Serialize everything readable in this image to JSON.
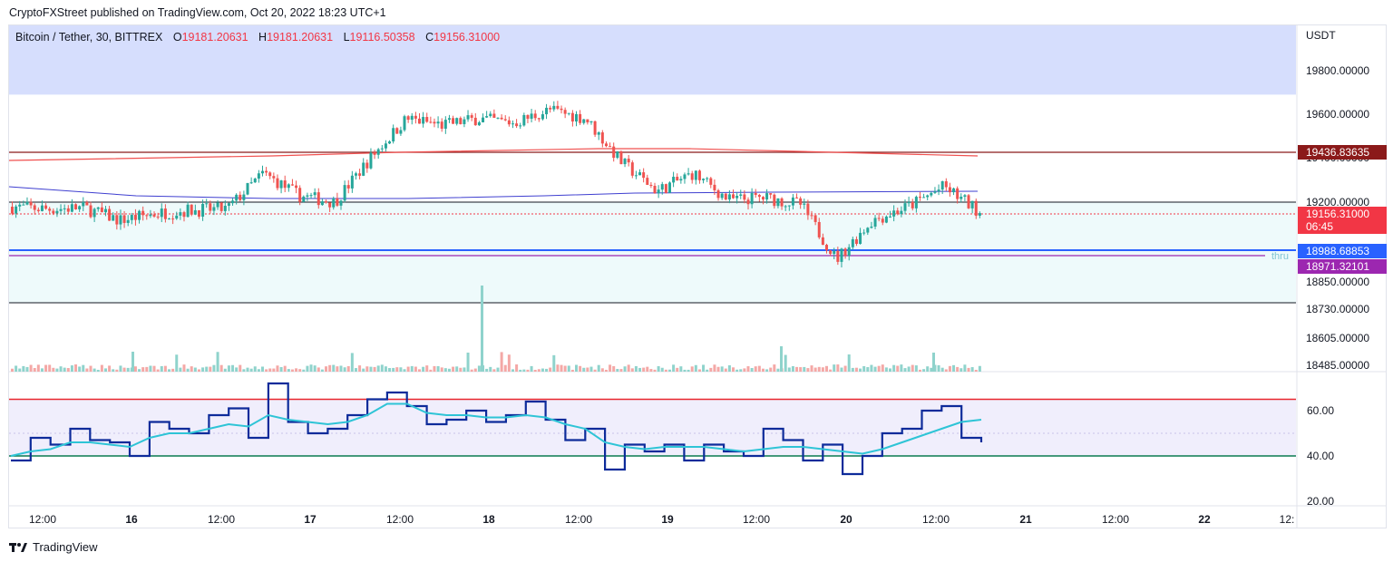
{
  "header": {
    "published": "CryptoFXStreet published on TradingView.com, Oct 20, 2022 18:23 UTC+1"
  },
  "legend": {
    "symbol": "Bitcoin / Tether, 30, BITTREX",
    "o_label": "O",
    "o_value": "19181.20631",
    "h_label": "H",
    "h_value": "19181.20631",
    "l_label": "L",
    "l_value": "19116.50358",
    "c_label": "C",
    "c_value": "19156.31000"
  },
  "footer": {
    "brand": "TradingView"
  },
  "colors": {
    "up": "#26a69a",
    "down": "#ef5350",
    "rsi": "#0d2b9a",
    "rsi_ma": "#2ec4d6",
    "zone_top": "#d6defd",
    "zone_mid": "#eefafb",
    "band": "#f0eefc"
  },
  "chart_data": [
    {
      "type": "candlestick",
      "title": "",
      "ylabel": "USDT",
      "ylim": [
        18430,
        19900
      ],
      "y_ticks": [
        "19800.00000",
        "19600.00000",
        "19400.00000",
        "19200.00000",
        "18850.00000",
        "18730.00000",
        "18605.00000",
        "18485.00000"
      ],
      "x_ticks": [
        "12:00",
        "16",
        "12:00",
        "17",
        "12:00",
        "18",
        "12:00",
        "19",
        "12:00",
        "20",
        "12:00",
        "21",
        "12:00",
        "22",
        "12:"
      ],
      "x_range": [
        "Oct 15 06:00",
        "Oct 23 00:00"
      ],
      "series_close": [
        {
          "t": "15 06:00",
          "v": 19180
        },
        {
          "t": "15 12:00",
          "v": 19170
        },
        {
          "t": "15 18:00",
          "v": 19175
        },
        {
          "t": "16 00:00",
          "v": 19120
        },
        {
          "t": "16 06:00",
          "v": 19150
        },
        {
          "t": "16 12:00",
          "v": 19165
        },
        {
          "t": "16 18:00",
          "v": 19170
        },
        {
          "t": "16 20:00",
          "v": 19330
        },
        {
          "t": "17 00:00",
          "v": 19230
        },
        {
          "t": "17 06:00",
          "v": 19200
        },
        {
          "t": "17 10:00",
          "v": 19400
        },
        {
          "t": "17 14:00",
          "v": 19580
        },
        {
          "t": "17 20:00",
          "v": 19550
        },
        {
          "t": "18 00:00",
          "v": 19580
        },
        {
          "t": "18 06:00",
          "v": 19560
        },
        {
          "t": "18 10:00",
          "v": 19620
        },
        {
          "t": "18 14:00",
          "v": 19580
        },
        {
          "t": "18 18:00",
          "v": 19380
        },
        {
          "t": "19 00:00",
          "v": 19250
        },
        {
          "t": "19 06:00",
          "v": 19330
        },
        {
          "t": "19 12:00",
          "v": 19210
        },
        {
          "t": "19 18:00",
          "v": 19220
        },
        {
          "t": "20 00:00",
          "v": 19190
        },
        {
          "t": "20 02:00",
          "v": 18950
        },
        {
          "t": "20 06:00",
          "v": 19120
        },
        {
          "t": "20 12:00",
          "v": 19180
        },
        {
          "t": "20 16:00",
          "v": 19270
        },
        {
          "t": "20 18:00",
          "v": 19156.31
        }
      ],
      "horizontal_levels": [
        {
          "value": 19436.83635,
          "label": "19436.83635",
          "color": "#8b1a1a"
        },
        {
          "value": 19156.31,
          "label": "19156.31000",
          "sublabel": "06:45",
          "color": "#f23645"
        },
        {
          "value": 18988.68853,
          "label": "18988.68853",
          "color": "#2962ff"
        },
        {
          "value": 18971.32101,
          "label": "18971.32101",
          "color": "#9c27b0",
          "note": "thru"
        }
      ],
      "zones": {
        "upper_top": 19900,
        "upper_bottom": 19690,
        "lower_top": 19200,
        "lower_bottom": 18760
      }
    },
    {
      "type": "line",
      "title": "",
      "ylim": [
        15,
        72
      ],
      "y_ticks": [
        "60.00",
        "40.00",
        "20.00"
      ],
      "levels": [
        {
          "value": 65,
          "color": "#e8262e"
        },
        {
          "value": 40,
          "color": "#0a7a50"
        }
      ],
      "series": [
        {
          "values": [
            38,
            48,
            45,
            52,
            47,
            46,
            40,
            55,
            52,
            50,
            58,
            61,
            48,
            72,
            55,
            50,
            52,
            58,
            65,
            68,
            62,
            54,
            56,
            60,
            55,
            58,
            64,
            56,
            47,
            52,
            34,
            45,
            42,
            45,
            38,
            45,
            42,
            40,
            52,
            47,
            38,
            45,
            32,
            40,
            50,
            52,
            60,
            62,
            48,
            46
          ]
        },
        {
          "values": [
            40,
            42,
            43,
            46,
            46,
            45,
            44,
            48,
            50,
            50,
            52,
            54,
            53,
            58,
            56,
            55,
            54,
            55,
            58,
            63,
            63,
            59,
            58,
            58,
            57,
            57,
            58,
            57,
            54,
            52,
            46,
            44,
            43,
            44,
            44,
            44,
            43,
            42,
            43,
            44,
            44,
            43,
            42,
            41,
            43,
            46,
            49,
            52,
            55,
            56
          ]
        }
      ]
    }
  ]
}
